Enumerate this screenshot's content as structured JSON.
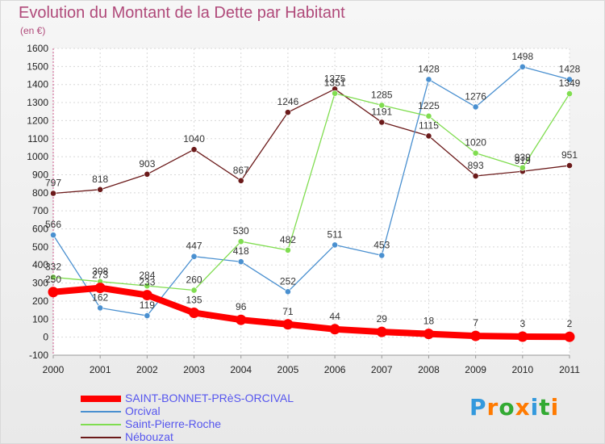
{
  "chart_data": {
    "type": "line",
    "title": "Evolution du Montant de la Dette par Habitant",
    "subtitle": "(en €)",
    "x": [
      2000,
      2001,
      2002,
      2003,
      2004,
      2005,
      2006,
      2007,
      2008,
      2009,
      2010,
      2011
    ],
    "ylim": [
      -100,
      1600
    ],
    "yticks": [
      -100,
      0,
      100,
      200,
      300,
      400,
      500,
      600,
      700,
      800,
      900,
      1000,
      1100,
      1200,
      1300,
      1400,
      1500,
      1600
    ],
    "grid": true,
    "legend_position": "bottom-left",
    "series": [
      {
        "name": "SAINT-BONNET-PRèS-ORCIVAL",
        "color": "#ff0000",
        "values": [
          250,
          273,
          233,
          135,
          96,
          71,
          44,
          29,
          18,
          7,
          3,
          2
        ]
      },
      {
        "name": "Orcival",
        "color": "#4a90d0",
        "values": [
          566,
          162,
          119,
          447,
          418,
          252,
          511,
          453,
          1428,
          1276,
          1498,
          1428
        ]
      },
      {
        "name": "Saint-Pierre-Roche",
        "color": "#80dd50",
        "values": [
          332,
          308,
          284,
          260,
          530,
          482,
          1351,
          1285,
          1225,
          1020,
          939,
          1349
        ]
      },
      {
        "name": "Nébouzat",
        "color": "#6b1a1a",
        "values": [
          797,
          818,
          903,
          1040,
          867,
          1246,
          1375,
          1191,
          1115,
          893,
          919,
          951
        ]
      }
    ]
  },
  "logo": {
    "letters": [
      "P",
      "r",
      "o",
      "x",
      "i",
      "t",
      "i"
    ],
    "colors": [
      "#3399dd",
      "#ff7a00",
      "#33aa33",
      "#ff7a00",
      "#3399dd",
      "#33aa33",
      "#ff7a00"
    ]
  }
}
